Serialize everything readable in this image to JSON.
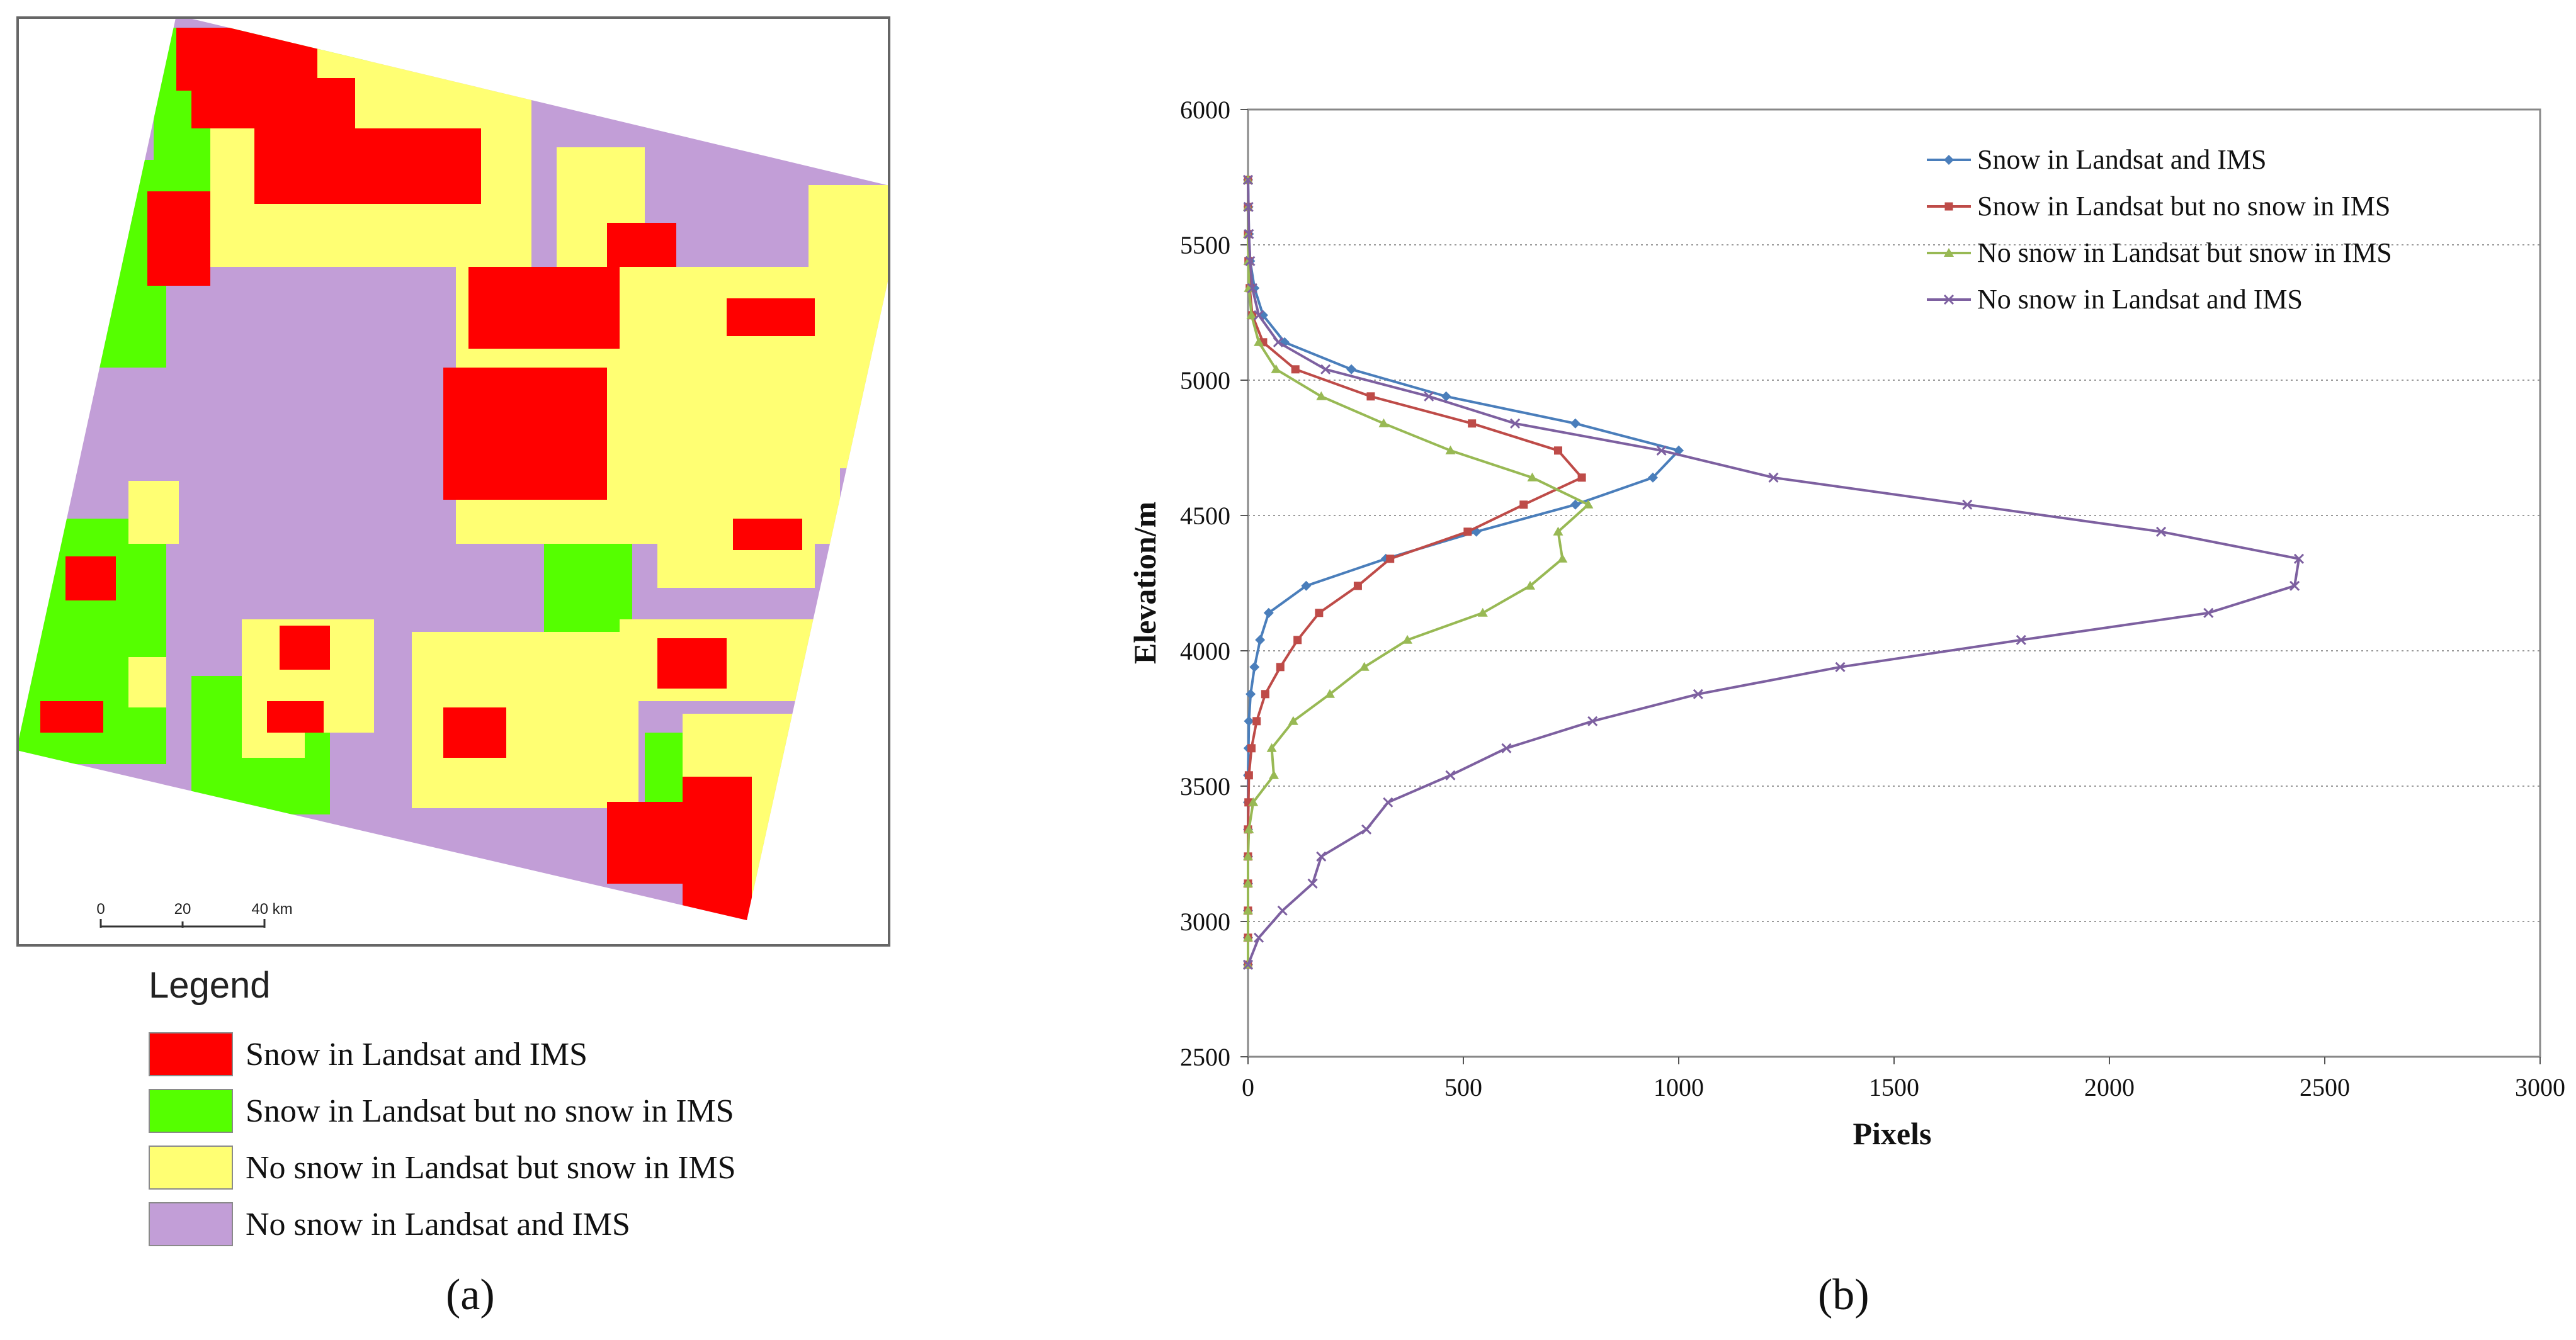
{
  "panel_a": {
    "scalebar": {
      "ticks": [
        "0",
        "20",
        "40 km"
      ]
    },
    "legend": {
      "title": "Legend",
      "items": [
        {
          "label": "Snow in Landsat and IMS",
          "color": "#ff0000"
        },
        {
          "label": "Snow in Landsat but no snow in IMS",
          "color": "#55ff00"
        },
        {
          "label": "No snow in Landsat but snow in IMS",
          "color": "#ffff73"
        },
        {
          "label": "No snow in Landsat and IMS",
          "color": "#c29ed7"
        }
      ]
    },
    "label": "(a)"
  },
  "panel_b": {
    "label": "(b)"
  },
  "chart_data": {
    "type": "line",
    "title": "",
    "xlabel": "Pixels",
    "ylabel": "Elevation/m",
    "xlim": [
      0,
      3000
    ],
    "ylim": [
      2500,
      6000
    ],
    "xticks": [
      0,
      500,
      1000,
      1500,
      2000,
      2500,
      3000
    ],
    "yticks": [
      2500,
      3000,
      3500,
      4000,
      4500,
      5000,
      5500,
      6000
    ],
    "grid": "horizontal dotted",
    "legend_position": "top-right",
    "y": [
      2840,
      2940,
      3040,
      3140,
      3240,
      3340,
      3440,
      3540,
      3640,
      3740,
      3840,
      3940,
      4040,
      4140,
      4240,
      4340,
      4440,
      4540,
      4640,
      4740,
      4840,
      4940,
      5040,
      5140,
      5240,
      5340,
      5440,
      5540,
      5640,
      5740
    ],
    "series": [
      {
        "name": "Snow in Landsat and IMS",
        "color": "#4a7ebb",
        "marker": "diamond",
        "values": [
          0,
          0,
          0,
          0,
          0,
          0,
          0,
          0,
          1,
          2,
          6,
          15,
          28,
          48,
          135,
          320,
          530,
          760,
          940,
          1000,
          760,
          460,
          240,
          85,
          35,
          15,
          5,
          2,
          1,
          0
        ]
      },
      {
        "name": "Snow in Landsat but no snow in IMS",
        "color": "#be4b48",
        "marker": "square",
        "values": [
          0,
          0,
          0,
          0,
          0,
          0,
          1,
          2,
          8,
          20,
          40,
          75,
          115,
          165,
          255,
          330,
          510,
          640,
          775,
          720,
          520,
          285,
          110,
          35,
          10,
          4,
          1,
          0,
          0,
          0
        ]
      },
      {
        "name": "No snow in Landsat but snow in IMS",
        "color": "#98b954",
        "marker": "triangle",
        "values": [
          0,
          0,
          0,
          0,
          0,
          2,
          12,
          60,
          55,
          105,
          190,
          270,
          370,
          545,
          655,
          730,
          720,
          790,
          660,
          470,
          315,
          170,
          65,
          25,
          8,
          2,
          1,
          0,
          0,
          0
        ]
      },
      {
        "name": "No snow in Landsat and IMS",
        "color": "#7d60a0",
        "marker": "x",
        "values": [
          0,
          25,
          80,
          150,
          170,
          275,
          325,
          470,
          600,
          800,
          1045,
          1375,
          1795,
          2230,
          2430,
          2440,
          2120,
          1670,
          1220,
          960,
          620,
          420,
          180,
          70,
          25,
          10,
          5,
          2,
          1,
          0
        ]
      }
    ]
  }
}
